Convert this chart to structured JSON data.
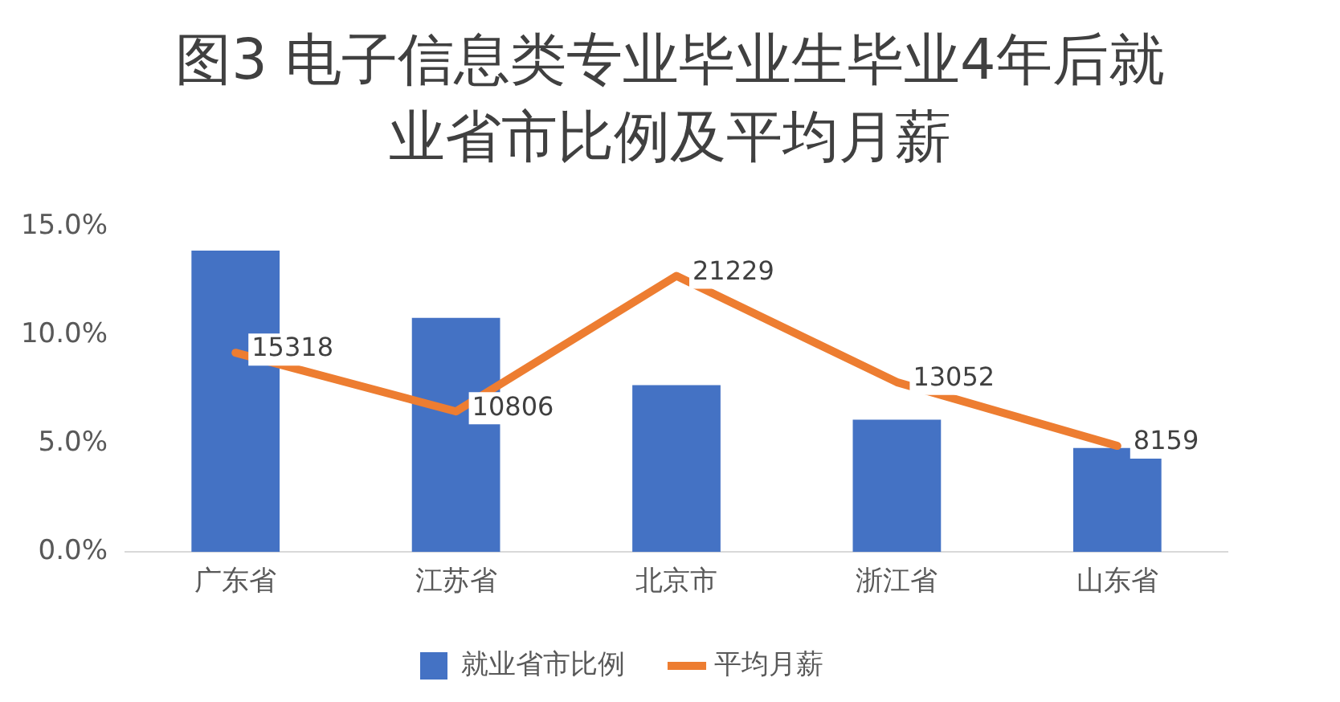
{
  "chart_data": {
    "type": "bar",
    "title": "图3 电子信息类专业毕业生毕业4年后就业省市比例及平均月薪",
    "categories": [
      "广东省",
      "江苏省",
      "北京市",
      "浙江省",
      "山东省"
    ],
    "series": [
      {
        "name": "就业省市比例",
        "color": "#4472c4",
        "values": [
          13.9,
          10.8,
          7.7,
          6.1,
          4.8
        ]
      },
      {
        "name": "平均月薪",
        "type": "line",
        "axis": "y2",
        "color": "#ed7d31",
        "values": [
          15318,
          10806,
          21229,
          13052,
          8159
        ],
        "value_labels": [
          "15318",
          "10806",
          "21229",
          "13052",
          "8159"
        ]
      }
    ],
    "ylim": [
      0,
      15
    ],
    "yticks": [
      {
        "value": 0,
        "label": "0.0%"
      },
      {
        "value": 5,
        "label": "5.0%"
      },
      {
        "value": 10,
        "label": "10.0%"
      },
      {
        "value": 15,
        "label": "15.0%"
      }
    ],
    "grid": false,
    "legend": "bottom",
    "marker": "none",
    "line_style": "solid"
  }
}
